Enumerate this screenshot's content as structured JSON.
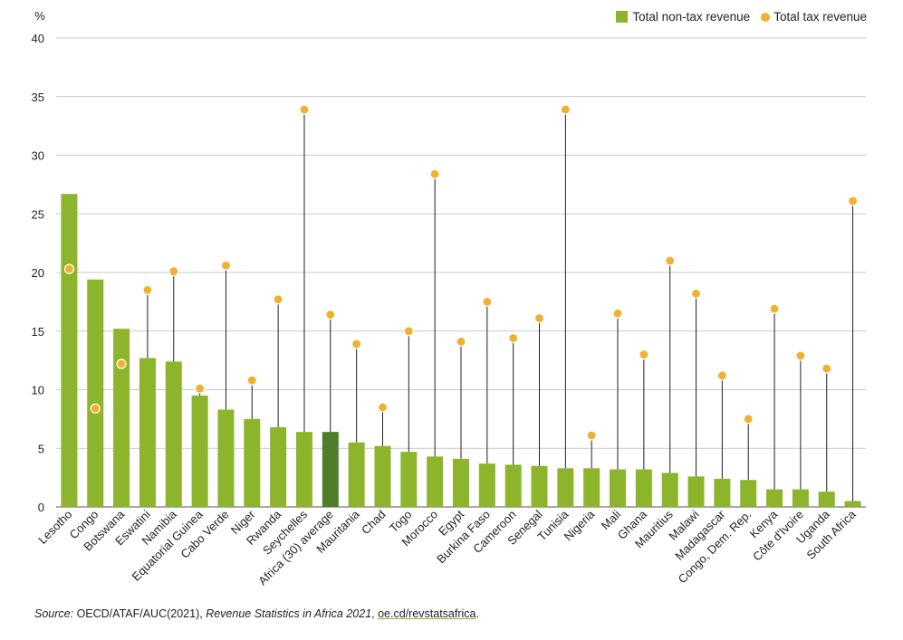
{
  "chart_data": {
    "type": "bar",
    "ylabel": "%",
    "ylim": [
      0,
      40
    ],
    "yticks": [
      "0",
      "5",
      "10",
      "15",
      "20",
      "25",
      "30",
      "35",
      "40"
    ],
    "grid": true,
    "legend_position": "top-right",
    "categories": [
      "Lesotho",
      "Congo",
      "Botswana",
      "Eswatini",
      "Namibia",
      "Equatorial Guinea",
      "Cabo Verde",
      "Niger",
      "Rwanda",
      "Seychelles",
      "Africa (30) average",
      "Mauritania",
      "Chad",
      "Togo",
      "Morocco",
      "Egypt",
      "Burkina Faso",
      "Cameroon",
      "Senegal",
      "Tunisia",
      "Nigeria",
      "Mali",
      "Ghana",
      "Mauritius",
      "Malawi",
      "Madagascar",
      "Congo, Dem. Rep.",
      "Kenya",
      "Côte d'Ivoire",
      "Uganda",
      "South Africa"
    ],
    "highlight_category": "Africa (30) average",
    "series": [
      {
        "name": "Total non-tax revenue",
        "kind": "bar",
        "values": [
          26.7,
          19.4,
          15.2,
          12.7,
          12.4,
          9.5,
          8.3,
          7.5,
          6.8,
          6.4,
          6.4,
          5.5,
          5.2,
          4.7,
          4.3,
          4.1,
          3.7,
          3.6,
          3.5,
          3.3,
          3.3,
          3.2,
          3.2,
          2.9,
          2.6,
          2.4,
          2.3,
          1.5,
          1.5,
          1.3,
          0.5
        ]
      },
      {
        "name": "Total tax revenue",
        "kind": "dot",
        "values": [
          20.3,
          8.4,
          12.2,
          18.5,
          20.1,
          10.1,
          20.6,
          10.8,
          17.7,
          33.9,
          16.4,
          13.9,
          8.5,
          15.0,
          28.4,
          14.1,
          17.5,
          14.4,
          16.1,
          33.9,
          6.1,
          16.5,
          13.0,
          21.0,
          18.2,
          11.2,
          7.5,
          16.9,
          12.9,
          11.8,
          26.1
        ]
      }
    ],
    "colors": {
      "bar": "#8cb52b",
      "bar_highlight": "#4f7d2a",
      "dot": "#f0b030",
      "grid": "#b9b9b9",
      "stem": "#231f20"
    }
  },
  "legend": {
    "nontax_label": "Total non-tax revenue",
    "tax_label": "Total tax revenue"
  },
  "source": {
    "label": "Source:",
    "text_a": " OECD/ATAF/AUC(2021), ",
    "title": "Revenue Statistics in Africa 2021",
    "text_b": ", ",
    "link": "oe.cd/revstatsafrica",
    "end": "."
  }
}
